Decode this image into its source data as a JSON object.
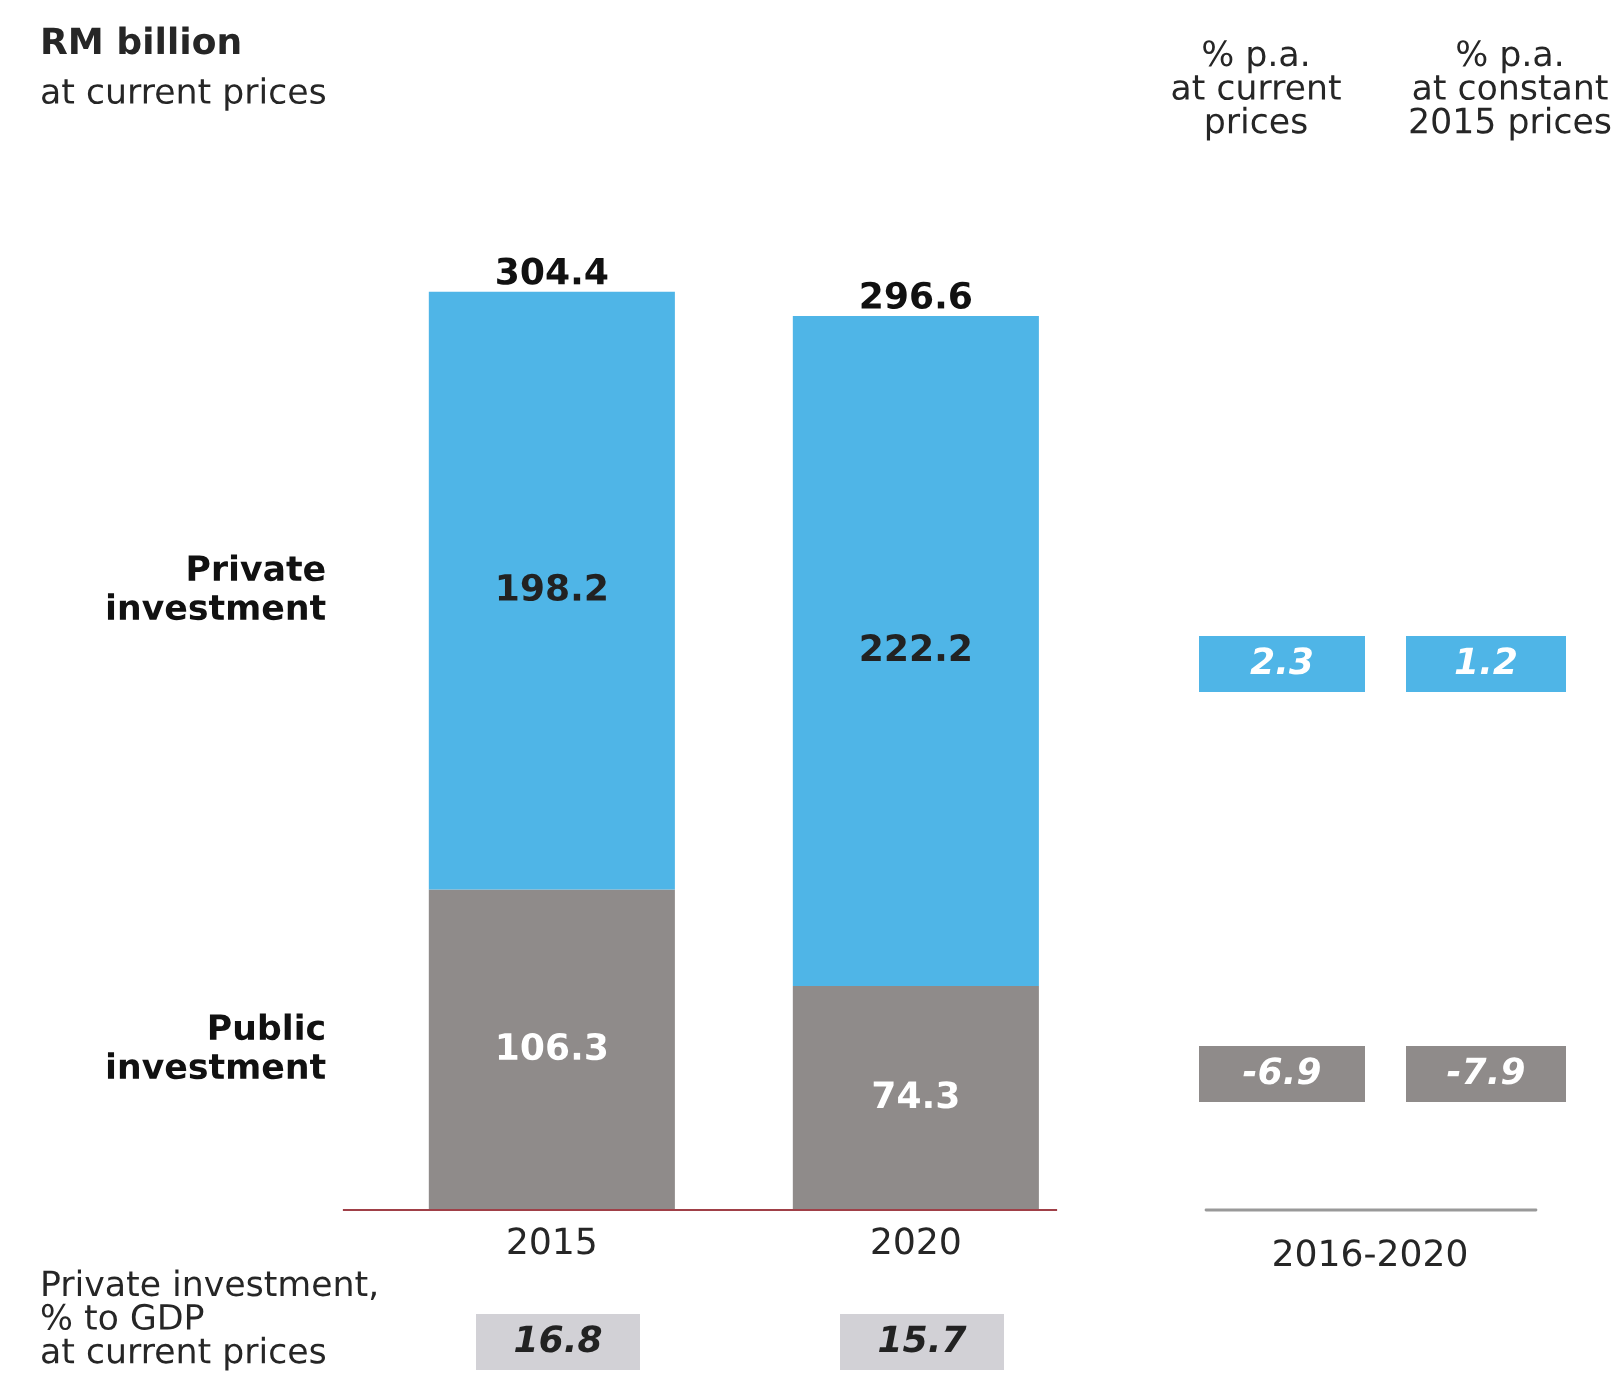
{
  "chart_data": {
    "type": "bar",
    "title": "RM billion",
    "subtitle": "at current prices",
    "categories": [
      "2015",
      "2020"
    ],
    "stacked": true,
    "data_labels": true,
    "legend": false,
    "series": [
      {
        "name": "Public investment",
        "color": "#8f8b8a",
        "values": [
          106.3,
          74.3
        ]
      },
      {
        "name": "Private investment",
        "color": "#4fb5e7",
        "values": [
          198.2,
          222.2
        ]
      }
    ],
    "totals": [
      "304.4",
      "296.6"
    ],
    "annotations": [
      "% p.a.\nat current\nprices",
      "% p.a.\nat constant\n2015 prices",
      "2.3",
      "1.2",
      "-6.9",
      "-7.9",
      "2016-2020",
      "Private investment,\n% to GDP\nat current prices",
      "16.8",
      "15.7"
    ]
  }
}
